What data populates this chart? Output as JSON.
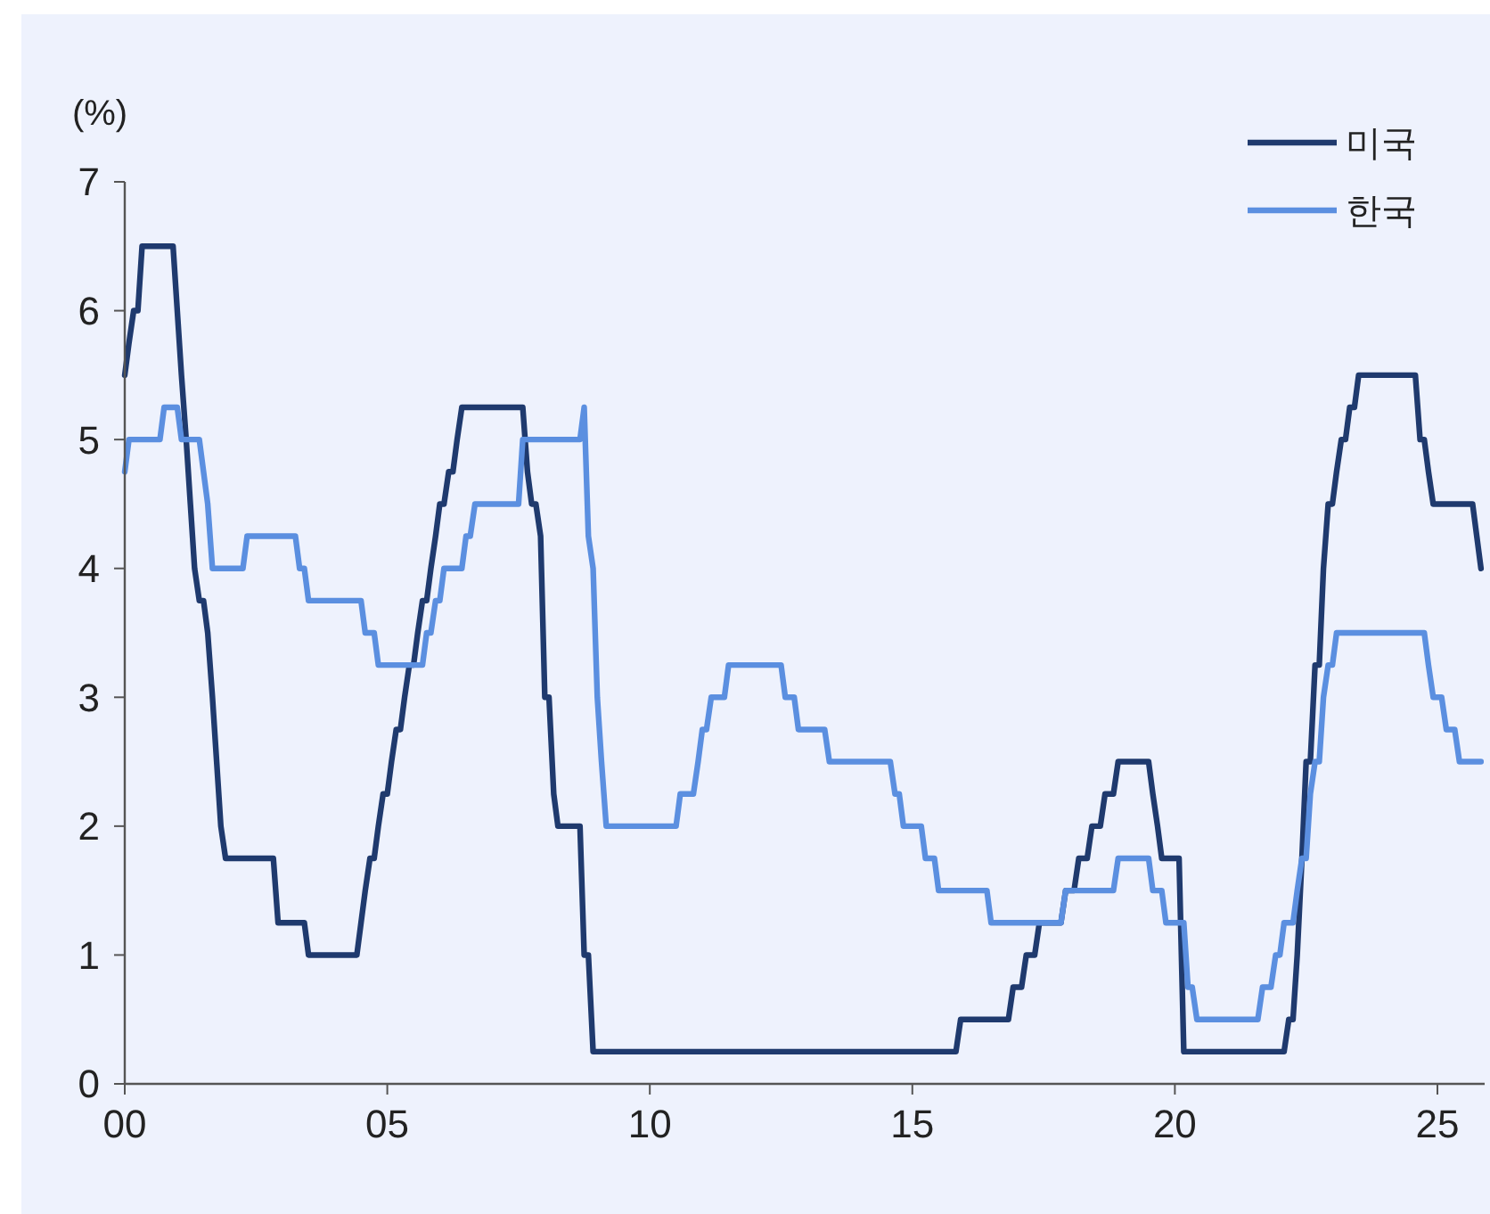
{
  "chart_data": {
    "type": "line",
    "ylabel": "(%)",
    "xlim": [
      0,
      25.9
    ],
    "xticks": [
      {
        "value": 0,
        "label": "00"
      },
      {
        "value": 5,
        "label": "05"
      },
      {
        "value": 10,
        "label": "10"
      },
      {
        "value": 15,
        "label": "15"
      },
      {
        "value": 20,
        "label": "20"
      },
      {
        "value": 25,
        "label": "25"
      }
    ],
    "ylim": [
      0,
      7
    ],
    "yticks": [
      0,
      1,
      2,
      3,
      4,
      5,
      6,
      7
    ],
    "grid": false,
    "legend": "top right",
    "marker": "none",
    "line_style": "solid",
    "series": [
      {
        "name": "미국",
        "color": "#1f3a6e",
        "x": [
          0,
          0.08,
          0.17,
          0.25,
          0.33,
          0.92,
          1.08,
          1.17,
          1.25,
          1.33,
          1.42,
          1.5,
          1.58,
          1.67,
          1.75,
          1.83,
          1.92,
          2.83,
          2.92,
          3.42,
          3.5,
          4.42,
          4.5,
          4.58,
          4.67,
          4.75,
          4.83,
          4.92,
          5.0,
          5.08,
          5.17,
          5.25,
          5.33,
          5.42,
          5.5,
          5.58,
          5.67,
          5.75,
          5.83,
          5.92,
          6.0,
          6.08,
          6.17,
          6.25,
          6.33,
          6.42,
          7.58,
          7.67,
          7.75,
          7.83,
          7.92,
          8.0,
          8.08,
          8.17,
          8.25,
          8.67,
          8.75,
          8.83,
          8.92,
          15.83,
          15.92,
          16.83,
          16.92,
          17.08,
          17.17,
          17.33,
          17.42,
          17.83,
          17.92,
          18.08,
          18.17,
          18.33,
          18.42,
          18.58,
          18.67,
          18.83,
          18.92,
          19.5,
          19.58,
          19.67,
          19.75,
          20.08,
          20.17,
          22.08,
          22.17,
          22.25,
          22.33,
          22.42,
          22.5,
          22.58,
          22.67,
          22.75,
          22.83,
          22.92,
          23.0,
          23.08,
          23.17,
          23.25,
          23.33,
          23.42,
          23.5,
          24.58,
          24.67,
          24.75,
          24.83,
          24.92,
          25.67,
          25.75,
          25.83
        ],
        "values": [
          5.5,
          5.75,
          6.0,
          6.0,
          6.5,
          6.5,
          5.5,
          5.0,
          4.5,
          4.0,
          3.75,
          3.75,
          3.5,
          3.0,
          2.5,
          2.0,
          1.75,
          1.75,
          1.25,
          1.25,
          1.0,
          1.0,
          1.25,
          1.5,
          1.75,
          1.75,
          2.0,
          2.25,
          2.25,
          2.5,
          2.75,
          2.75,
          3.0,
          3.25,
          3.25,
          3.5,
          3.75,
          3.75,
          4.0,
          4.25,
          4.5,
          4.5,
          4.75,
          4.75,
          5.0,
          5.25,
          5.25,
          4.75,
          4.5,
          4.5,
          4.25,
          3.0,
          3.0,
          2.25,
          2.0,
          2.0,
          1.0,
          1.0,
          0.25,
          0.25,
          0.5,
          0.5,
          0.75,
          0.75,
          1.0,
          1.0,
          1.25,
          1.25,
          1.5,
          1.5,
          1.75,
          1.75,
          2.0,
          2.0,
          2.25,
          2.25,
          2.5,
          2.5,
          2.25,
          2.0,
          1.75,
          1.75,
          0.25,
          0.25,
          0.5,
          0.5,
          1.0,
          1.75,
          2.5,
          2.5,
          3.25,
          3.25,
          4.0,
          4.5,
          4.5,
          4.75,
          5.0,
          5.0,
          5.25,
          5.25,
          5.5,
          5.5,
          5.0,
          5.0,
          4.75,
          4.5,
          4.5,
          4.25,
          4.0
        ]
      },
      {
        "name": "한국",
        "color": "#5b8fe0",
        "x": [
          0,
          0.08,
          0.67,
          0.75,
          1.0,
          1.08,
          1.42,
          1.5,
          1.58,
          1.67,
          2.25,
          2.33,
          3.25,
          3.33,
          3.42,
          3.5,
          4.5,
          4.58,
          4.75,
          4.83,
          5.67,
          5.75,
          5.83,
          5.92,
          6.0,
          6.08,
          6.42,
          6.5,
          6.58,
          6.67,
          7.5,
          7.58,
          8.67,
          8.75,
          8.83,
          8.92,
          9.0,
          9.08,
          9.17,
          10.5,
          10.58,
          10.83,
          10.92,
          11.0,
          11.08,
          11.17,
          11.42,
          11.5,
          12.5,
          12.58,
          12.75,
          12.83,
          13.33,
          13.42,
          14.58,
          14.67,
          14.75,
          14.83,
          15.17,
          15.25,
          15.42,
          15.5,
          16.42,
          16.5,
          17.83,
          17.92,
          18.83,
          18.92,
          19.5,
          19.58,
          19.75,
          19.83,
          20.17,
          20.25,
          20.33,
          20.42,
          21.58,
          21.67,
          21.83,
          21.92,
          22.0,
          22.08,
          22.25,
          22.33,
          22.42,
          22.5,
          22.58,
          22.67,
          22.75,
          22.83,
          22.92,
          23.0,
          23.08,
          24.75,
          24.83,
          24.92,
          25.08,
          25.17,
          25.33,
          25.42,
          25.83
        ],
        "values": [
          4.75,
          5.0,
          5.0,
          5.25,
          5.25,
          5.0,
          5.0,
          4.75,
          4.5,
          4.0,
          4.0,
          4.25,
          4.25,
          4.0,
          4.0,
          3.75,
          3.75,
          3.5,
          3.5,
          3.25,
          3.25,
          3.5,
          3.5,
          3.75,
          3.75,
          4.0,
          4.0,
          4.25,
          4.25,
          4.5,
          4.5,
          5.0,
          5.0,
          5.25,
          4.25,
          4.0,
          3.0,
          2.5,
          2.0,
          2.0,
          2.25,
          2.25,
          2.5,
          2.75,
          2.75,
          3.0,
          3.0,
          3.25,
          3.25,
          3.0,
          3.0,
          2.75,
          2.75,
          2.5,
          2.5,
          2.25,
          2.25,
          2.0,
          2.0,
          1.75,
          1.75,
          1.5,
          1.5,
          1.25,
          1.25,
          1.5,
          1.5,
          1.75,
          1.75,
          1.5,
          1.5,
          1.25,
          1.25,
          0.75,
          0.75,
          0.5,
          0.5,
          0.75,
          0.75,
          1.0,
          1.0,
          1.25,
          1.25,
          1.5,
          1.75,
          1.75,
          2.25,
          2.5,
          2.5,
          3.0,
          3.25,
          3.25,
          3.5,
          3.5,
          3.25,
          3.0,
          3.0,
          2.75,
          2.75,
          2.5,
          2.5
        ]
      }
    ]
  }
}
